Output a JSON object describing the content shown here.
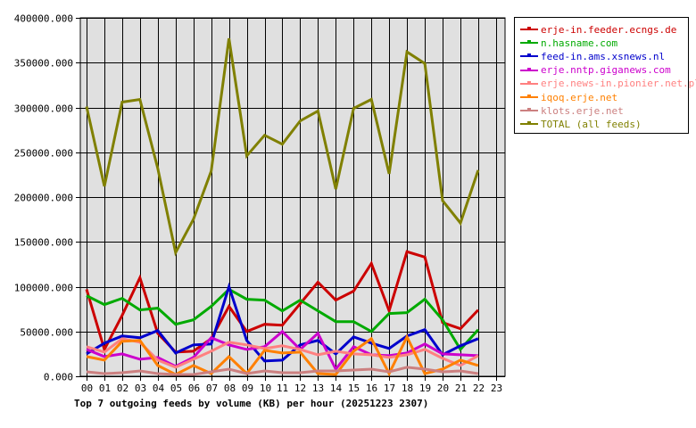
{
  "chart_data": {
    "type": "line",
    "title": "Top 7 outgoing feeds by volume (KB) per hour (20251223 2307)",
    "xlabel": "",
    "ylabel": "",
    "ylim": [
      0,
      400000
    ],
    "grid": true,
    "legend_position": "right",
    "yticks": [
      "0.000",
      "50000.000",
      "100000.000",
      "150000.000",
      "200000.000",
      "250000.000",
      "300000.000",
      "350000.000",
      "400000.000"
    ],
    "categories": [
      "00",
      "01",
      "02",
      "03",
      "04",
      "05",
      "06",
      "07",
      "08",
      "09",
      "10",
      "11",
      "12",
      "13",
      "14",
      "15",
      "16",
      "17",
      "18",
      "19",
      "20",
      "21",
      "22",
      "23"
    ],
    "series": [
      {
        "name": "erje-in.feeder.ecngs.de",
        "color": "#cc0000",
        "values": [
          97000,
          30000,
          68000,
          110000,
          48000,
          27000,
          28000,
          42000,
          78000,
          50000,
          58000,
          57000,
          81000,
          105000,
          85000,
          95000,
          126000,
          73000,
          139000,
          133000,
          60000,
          53000,
          74000,
          null
        ]
      },
      {
        "name": "n.hasname.com",
        "color": "#00aa00",
        "values": [
          90000,
          80000,
          87000,
          74000,
          76000,
          58000,
          63000,
          78000,
          97000,
          86000,
          85000,
          73000,
          85000,
          73000,
          61000,
          61000,
          50000,
          70000,
          71000,
          86000,
          63000,
          30000,
          52000,
          null
        ]
      },
      {
        "name": "feed-in.ams.xsnews.nl",
        "color": "#0000cc",
        "values": [
          25000,
          37000,
          45000,
          43000,
          51000,
          26000,
          35000,
          36000,
          100000,
          40000,
          17000,
          18000,
          35000,
          40000,
          25000,
          44000,
          37000,
          31000,
          45000,
          52000,
          24000,
          34000,
          42000,
          null
        ]
      },
      {
        "name": "erje.nntp.giganews.com",
        "color": "#cc00cc",
        "values": [
          30000,
          22000,
          25000,
          19000,
          21000,
          11000,
          21000,
          43000,
          35000,
          30000,
          33000,
          50000,
          30000,
          48000,
          8000,
          33000,
          24000,
          23000,
          26000,
          36000,
          25000,
          24000,
          23000,
          null
        ]
      },
      {
        "name": "erje.news-in.pionier.net.pl",
        "color": "#ff8080",
        "values": [
          33000,
          27000,
          42000,
          38000,
          18000,
          10000,
          19000,
          28000,
          38000,
          35000,
          31000,
          34000,
          30000,
          24000,
          28000,
          25000,
          24000,
          21000,
          24000,
          30000,
          20000,
          12000,
          23000,
          null
        ]
      },
      {
        "name": "iqoq.erje.net",
        "color": "#ff8000",
        "values": [
          22000,
          18000,
          39000,
          40000,
          12000,
          2000,
          12000,
          3000,
          22000,
          3000,
          29000,
          26000,
          27000,
          3000,
          2000,
          28000,
          42000,
          3000,
          44000,
          3000,
          8000,
          18000,
          12000,
          null
        ]
      },
      {
        "name": "klots.erje.net",
        "color": "#cc8080",
        "values": [
          5000,
          3000,
          4000,
          6000,
          3000,
          2000,
          2000,
          5000,
          8000,
          3000,
          6000,
          4000,
          4000,
          6000,
          6000,
          7000,
          8000,
          5000,
          10000,
          8000,
          5000,
          6000,
          3000,
          null
        ]
      },
      {
        "name": "TOTAL (all feeds)",
        "color": "#808000",
        "values": [
          301000,
          212000,
          306000,
          309000,
          232000,
          138000,
          175000,
          229000,
          377000,
          246000,
          269000,
          259000,
          285000,
          296000,
          209000,
          299000,
          309000,
          226000,
          362000,
          349000,
          196000,
          171000,
          230000,
          null
        ]
      }
    ]
  },
  "legend": {
    "items": [
      {
        "label": "erje-in.feeder.ecngs.de",
        "color": "#cc0000"
      },
      {
        "label": "n.hasname.com",
        "color": "#00aa00"
      },
      {
        "label": "feed-in.ams.xsnews.nl",
        "color": "#0000cc"
      },
      {
        "label": "erje.nntp.giganews.com",
        "color": "#cc00cc"
      },
      {
        "label": "erje.news-in.pionier.net.pl",
        "color": "#ff8080"
      },
      {
        "label": "iqoq.erje.net",
        "color": "#ff8000"
      },
      {
        "label": "klots.erje.net",
        "color": "#cc8080"
      },
      {
        "label": "TOTAL (all feeds)",
        "color": "#808000"
      }
    ]
  },
  "colors": {
    "plot_background": "#e0e0e0",
    "grid": "#000000"
  }
}
